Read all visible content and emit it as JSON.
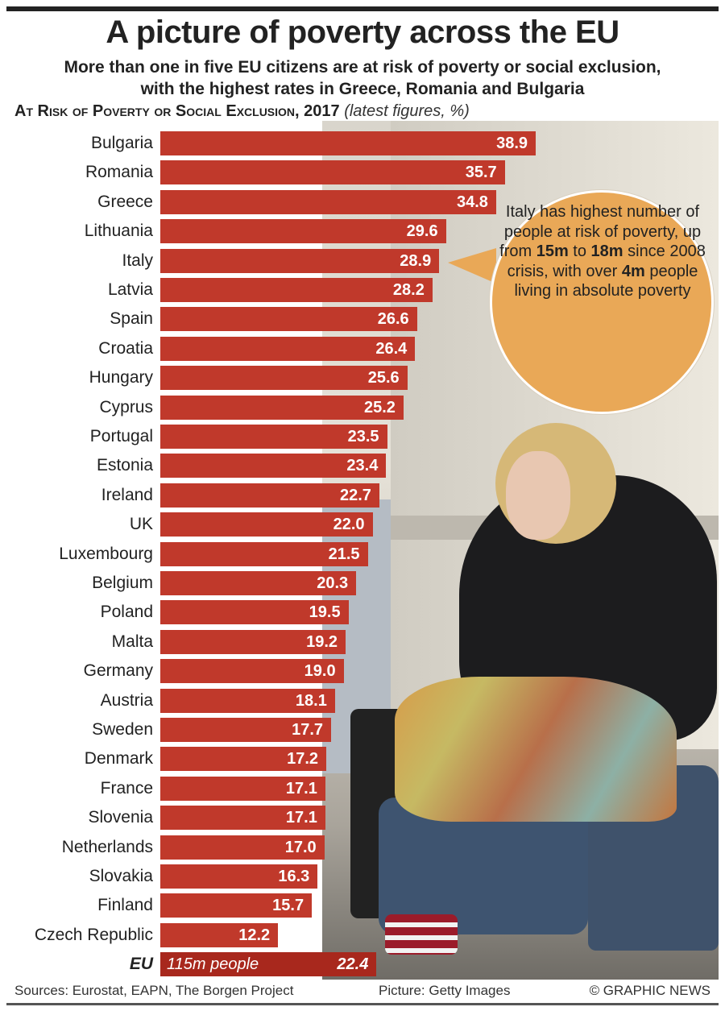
{
  "header": {
    "title": "A picture of poverty across the EU",
    "subtitle": "More than one in five EU citizens are at risk of poverty or social exclusion, with the highest rates in Greece, Romania and Bulgaria",
    "chart_title": "At Risk of Poverty or Social Exclusion, 2017",
    "chart_note": "(latest figures, %)"
  },
  "chart_data": {
    "type": "bar",
    "orientation": "horizontal",
    "title": "At Risk of Poverty or Social Exclusion, 2017",
    "unit": "%",
    "categories": [
      "Bulgaria",
      "Romania",
      "Greece",
      "Lithuania",
      "Italy",
      "Latvia",
      "Spain",
      "Croatia",
      "Hungary",
      "Cyprus",
      "Portugal",
      "Estonia",
      "Ireland",
      "UK",
      "Luxembourg",
      "Belgium",
      "Poland",
      "Malta",
      "Germany",
      "Austria",
      "Sweden",
      "Denmark",
      "France",
      "Slovenia",
      "Netherlands",
      "Slovakia",
      "Finland",
      "Czech Republic"
    ],
    "values": [
      "38.9",
      "35.7",
      "34.8",
      "29.6",
      "28.9",
      "28.2",
      "26.6",
      "26.4",
      "25.6",
      "25.2",
      "23.5",
      "23.4",
      "22.7",
      "22.0",
      "21.5",
      "20.3",
      "19.5",
      "19.2",
      "19.0",
      "18.1",
      "17.7",
      "17.2",
      "17.1",
      "17.1",
      "17.0",
      "16.3",
      "15.7",
      "12.2"
    ],
    "total": {
      "label": "EU",
      "value": "22.4",
      "note": "115m people"
    },
    "bar_color": "#c0392b",
    "total_bar_color": "#a8281d",
    "grid": false
  },
  "callout": {
    "parts": [
      "Italy has highest number of people at risk of poverty, up from ",
      "15m",
      " to ",
      "18m",
      " since 2008 crisis, with over ",
      "4m",
      " people living in absolute poverty"
    ],
    "color": "#e9a857"
  },
  "footer": {
    "sources": "Sources: Eurostat, EAPN, The Borgen Project",
    "picture": "Picture: Getty Images",
    "credit": "© GRAPHIC NEWS"
  }
}
